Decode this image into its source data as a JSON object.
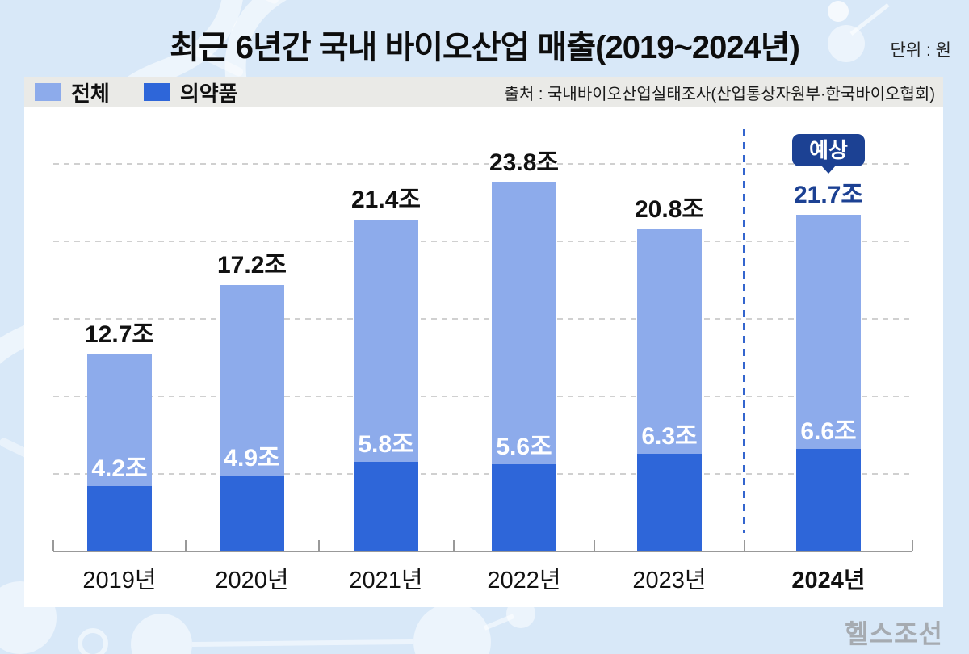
{
  "page": {
    "title": "최근 6년간 국내 바이오산업 매출(2019~2024년)",
    "unit_label": "단위 : 원",
    "source": "출처 : 국내바이오산업실태조사(산업통상자원부·한국바이오협회)",
    "logo": "헬스조선"
  },
  "chart_data": {
    "type": "bar",
    "subtype": "overlaid-stacked-columns",
    "title": "최근 6년간 국내 바이오산업 매출(2019~2024년)",
    "unit": "조 원",
    "value_suffix": "조",
    "categories": [
      "2019년",
      "2020년",
      "2021년",
      "2022년",
      "2023년",
      "2024년"
    ],
    "series": [
      {
        "name": "전체",
        "color": "#8DABEB",
        "values": [
          12.7,
          17.2,
          21.4,
          23.8,
          20.8,
          21.7
        ]
      },
      {
        "name": "의약품",
        "color": "#2E66D9",
        "values": [
          4.2,
          4.9,
          5.8,
          5.6,
          6.3,
          6.6
        ]
      }
    ],
    "forecast_category": "2024년",
    "forecast_badge": "예상",
    "xlabel": "",
    "ylabel": "",
    "ylim": [
      0,
      28.5
    ],
    "gridlines": [
      5,
      10,
      15,
      20,
      25
    ],
    "grid": "horizontal-dashed",
    "legend_position": "top-left",
    "annotations": "2024년 값은 예상치이며 파란 점선으로 구분됨"
  },
  "colors": {
    "background": "#D8E8F8",
    "card": "#FFFFFF",
    "legend_band": "#EAEAE7",
    "total_bar": "#8DABEB",
    "pharma_bar": "#2E66D9",
    "forecast_navy": "#1C4193",
    "divider_blue": "#3465CE",
    "gridline": "#D0D0D0",
    "axis": "#999999",
    "logo_gray": "#A6ABB1"
  }
}
